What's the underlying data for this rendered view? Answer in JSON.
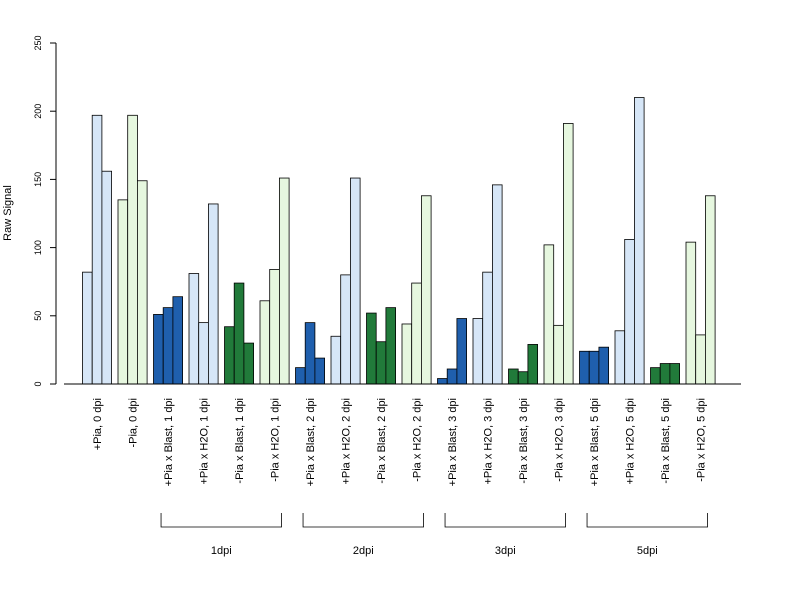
{
  "chart_data": {
    "type": "bar",
    "title": "",
    "xlabel": "",
    "ylabel": "Raw Signal",
    "ylim": [
      0,
      250
    ],
    "yticks": [
      0,
      50,
      100,
      150,
      200,
      250
    ],
    "grid": false,
    "legend": "none",
    "colors": {
      "light_blue": "#d6e6f7",
      "light_green": "#e6f7df",
      "dark_blue": "#1f5fad",
      "dark_green": "#217a3a"
    },
    "categories": [
      {
        "label": "+Pia, 0 dpi",
        "color": "light_blue",
        "values": [
          82,
          197,
          156
        ]
      },
      {
        "label": "-Pia, 0 dpi",
        "color": "light_green",
        "values": [
          135,
          197,
          149
        ]
      },
      {
        "label": "+Pia x Blast, 1 dpi",
        "color": "dark_blue",
        "values": [
          51,
          56,
          64
        ]
      },
      {
        "label": "+Pia x H2O, 1 dpi",
        "color": "light_blue",
        "values": [
          81,
          45,
          132
        ]
      },
      {
        "label": "-Pia x Blast, 1 dpi",
        "color": "dark_green",
        "values": [
          42,
          74,
          30
        ]
      },
      {
        "label": "-Pia x H2O, 1 dpi",
        "color": "light_green",
        "values": [
          61,
          84,
          151
        ]
      },
      {
        "label": "+Pia x Blast, 2 dpi",
        "color": "dark_blue",
        "values": [
          12,
          45,
          19
        ]
      },
      {
        "label": "+Pia x H2O, 2 dpi",
        "color": "light_blue",
        "values": [
          35,
          80,
          151
        ]
      },
      {
        "label": "-Pia x Blast, 2 dpi",
        "color": "dark_green",
        "values": [
          52,
          31,
          56
        ]
      },
      {
        "label": "-Pia x H2O, 2 dpi",
        "color": "light_green",
        "values": [
          44,
          74,
          138
        ]
      },
      {
        "label": "+Pia x Blast, 3 dpi",
        "color": "dark_blue",
        "values": [
          4,
          11,
          48
        ]
      },
      {
        "label": "+Pia x H2O, 3 dpi",
        "color": "light_blue",
        "values": [
          48,
          82,
          146
        ]
      },
      {
        "label": "-Pia x Blast, 3 dpi",
        "color": "dark_green",
        "values": [
          11,
          9,
          29
        ]
      },
      {
        "label": "-Pia x H2O, 3 dpi",
        "color": "light_green",
        "values": [
          102,
          43,
          191
        ]
      },
      {
        "label": "+Pia x Blast, 5 dpi",
        "color": "dark_blue",
        "values": [
          24,
          24,
          27
        ]
      },
      {
        "label": "+Pia x H2O, 5 dpi",
        "color": "light_blue",
        "values": [
          39,
          106,
          210
        ]
      },
      {
        "label": "-Pia x Blast, 5 dpi",
        "color": "dark_green",
        "values": [
          12,
          15,
          15
        ]
      },
      {
        "label": "-Pia x H2O, 5 dpi",
        "color": "light_green",
        "values": [
          104,
          36,
          138
        ]
      }
    ],
    "groups": [
      {
        "label": "1dpi",
        "from": 2,
        "to": 5
      },
      {
        "label": "2dpi",
        "from": 6,
        "to": 9
      },
      {
        "label": "3dpi",
        "from": 10,
        "to": 13
      },
      {
        "label": "5dpi",
        "from": 14,
        "to": 17
      }
    ]
  }
}
